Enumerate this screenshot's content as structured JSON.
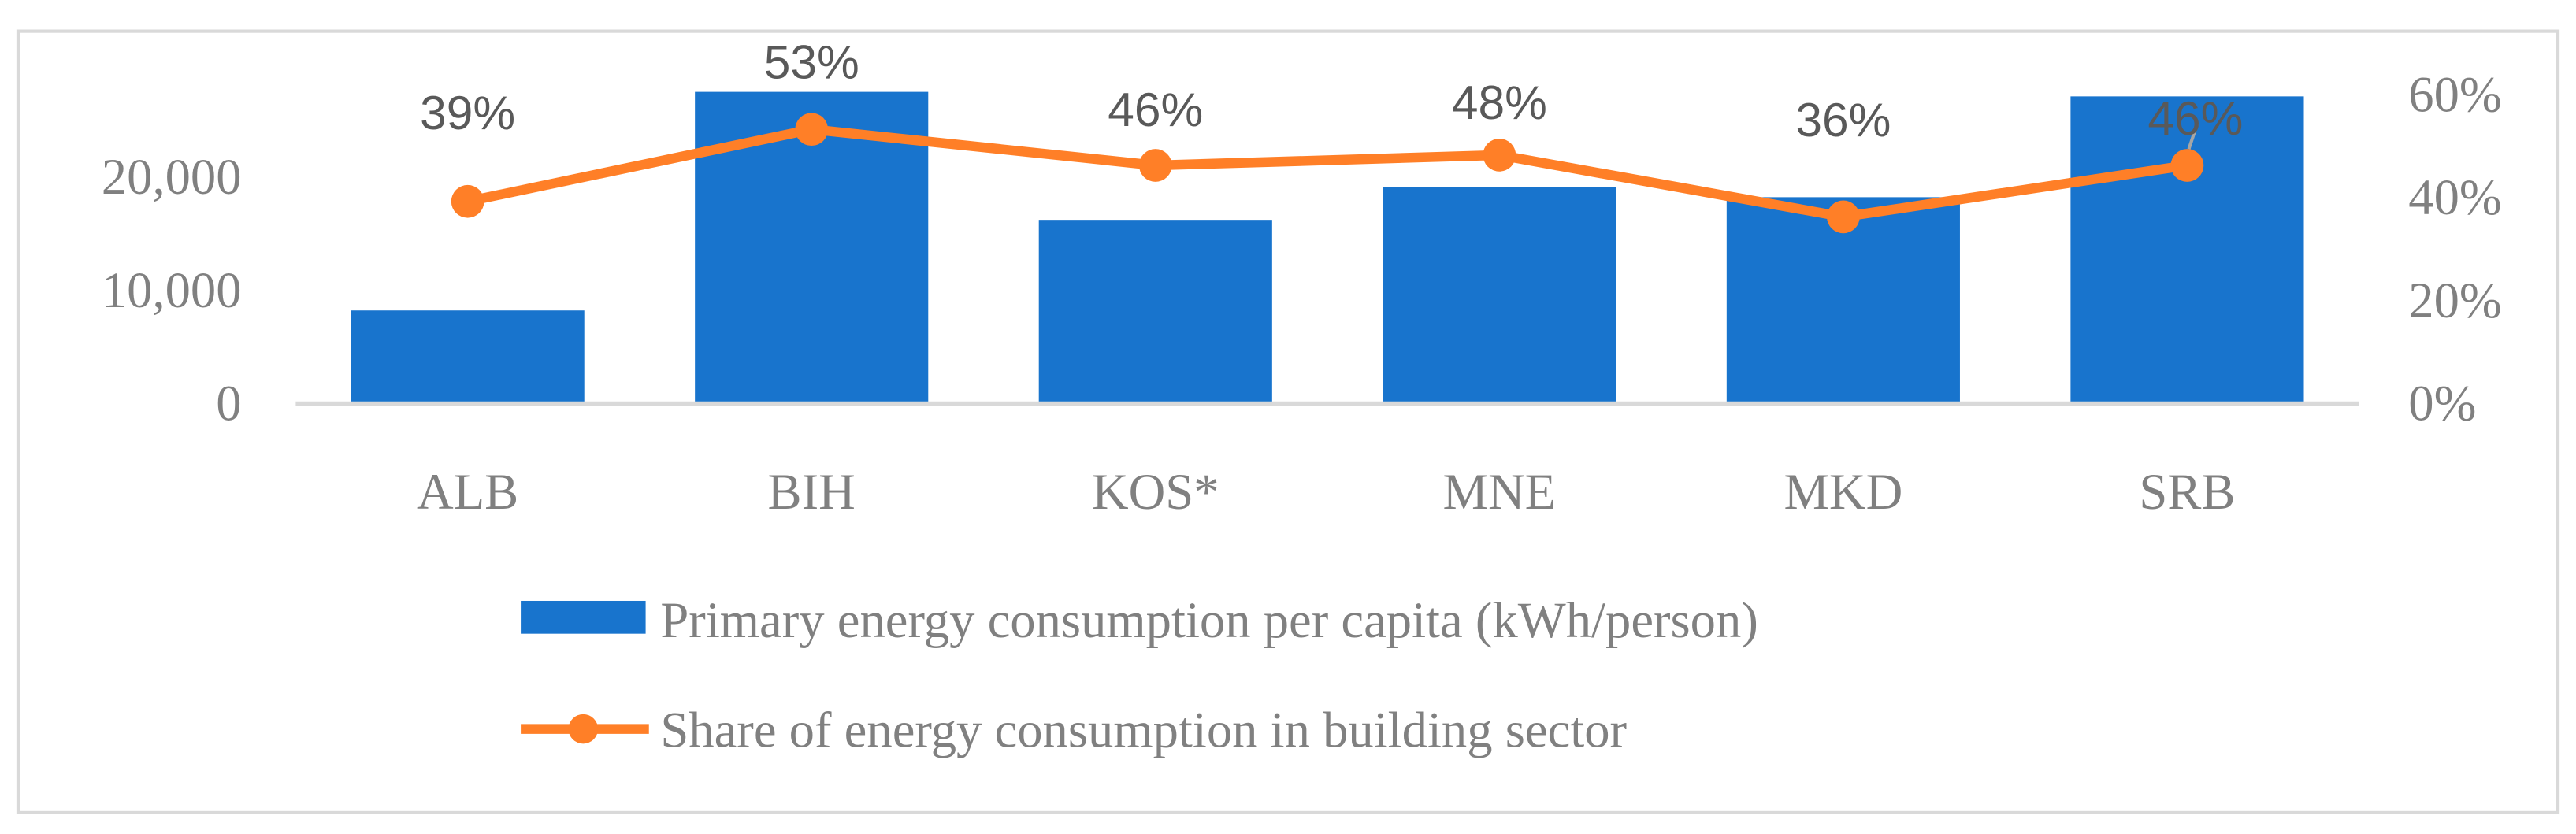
{
  "chart_data": {
    "type": "bar",
    "title": "",
    "xlabel": "",
    "ylabel": "",
    "categories": [
      "ALB",
      "BIH",
      "KOS*",
      "MNE",
      "MKD",
      "SRB"
    ],
    "series": [
      {
        "name": "Primary energy consumption per capita (kWh/person)",
        "type": "bar",
        "axis": "left",
        "color": "#1874CD",
        "values": [
          8100,
          27400,
          16100,
          19000,
          18100,
          27000
        ]
      },
      {
        "name": "Share of energy consumption in building sector",
        "type": "line",
        "axis": "right",
        "color": "#FF7F27",
        "values": [
          0.39,
          0.53,
          0.46,
          0.48,
          0.36,
          0.46
        ],
        "data_labels": [
          "39%",
          "53%",
          "46%",
          "48%",
          "36%",
          "46%"
        ]
      }
    ],
    "y_left": {
      "ylim": [
        0,
        30000
      ],
      "ticks": [
        0,
        10000,
        20000
      ],
      "tick_labels": [
        "0",
        "10,000",
        "20,000"
      ]
    },
    "y_right": {
      "ylim": [
        0,
        0.66
      ],
      "ticks": [
        0,
        0.2,
        0.4,
        0.6
      ],
      "tick_labels": [
        "0%",
        "20%",
        "40%",
        "60%"
      ]
    },
    "grid": false,
    "legend_placement": "bottom"
  }
}
